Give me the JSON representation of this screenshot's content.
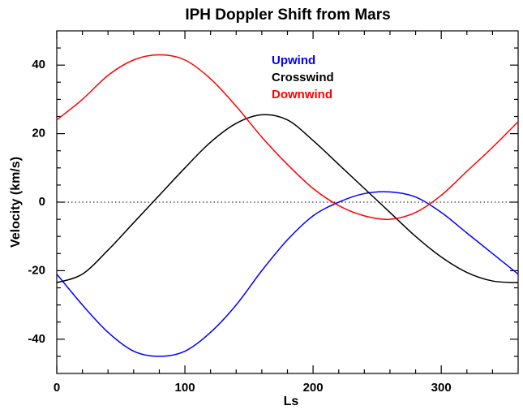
{
  "chart_data": {
    "type": "line",
    "title": "IPH Doppler Shift from Mars",
    "xlabel": "Ls",
    "ylabel": "Velocity (km/s)",
    "x": [
      0,
      20,
      40,
      60,
      80,
      100,
      120,
      140,
      160,
      180,
      200,
      220,
      240,
      260,
      280,
      300,
      320,
      340,
      360
    ],
    "series": [
      {
        "name": "Upwind",
        "color": "#0000ff",
        "values": [
          -21,
          -30,
          -38,
          -43.5,
          -45,
          -43.5,
          -38,
          -30,
          -20,
          -11,
          -4,
          0,
          2.5,
          3,
          1.5,
          -3,
          -9,
          -15,
          -21
        ]
      },
      {
        "name": "Crosswind",
        "color": "#000000",
        "values": [
          -23.5,
          -21,
          -14,
          -6,
          2,
          10,
          17.5,
          23,
          25.5,
          24,
          18,
          11,
          4,
          -3,
          -10,
          -16,
          -20.5,
          -23,
          -23.5
        ]
      },
      {
        "name": "Downwind",
        "color": "#ff0000",
        "values": [
          24,
          30,
          37,
          41.5,
          43,
          41.5,
          36,
          28,
          19,
          11,
          4,
          -1,
          -4,
          -5,
          -3,
          2,
          9,
          16,
          23.5
        ]
      }
    ],
    "xlim": [
      0,
      360
    ],
    "xticks": [
      0,
      100,
      200,
      300
    ],
    "xminorticks": [
      20,
      40,
      60,
      80,
      120,
      140,
      160,
      180,
      220,
      240,
      260,
      280,
      320,
      340
    ],
    "ylim": [
      -50,
      50
    ],
    "yticks": [
      -40,
      -20,
      0,
      20,
      40
    ],
    "yminorticks": [
      -45,
      -35,
      -30,
      -25,
      -15,
      -10,
      -5,
      5,
      10,
      15,
      25,
      30,
      35,
      45
    ],
    "hline": 0,
    "legend": "upper center"
  }
}
